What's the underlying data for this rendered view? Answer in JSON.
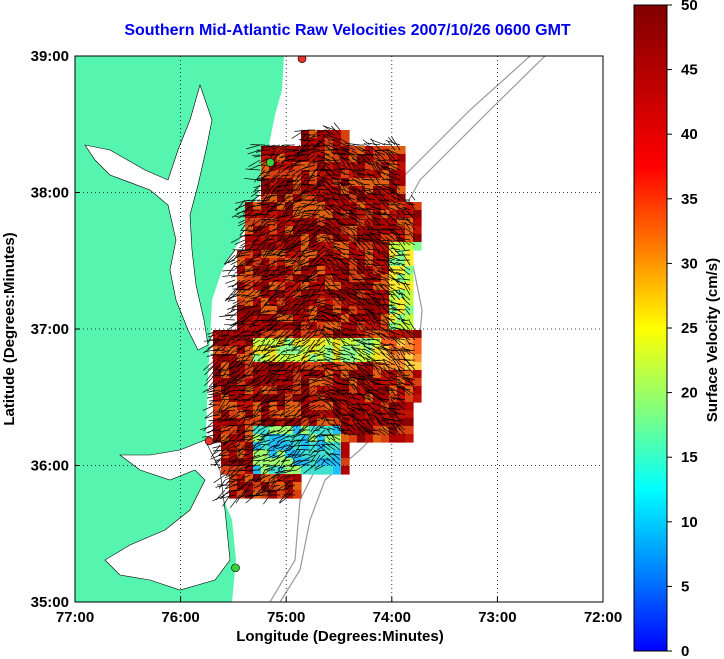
{
  "title": "Southern Mid-Atlantic Raw Velocities 2007/10/26 0600 GMT",
  "map": {
    "xlabel": "Longitude (Degrees:Minutes)",
    "ylabel": "Latitude (Degrees:Minutes)",
    "x_ticks": [
      "77:00",
      "76:00",
      "75:00",
      "74:00",
      "73:00",
      "72:00"
    ],
    "y_ticks": [
      "39:00",
      "38:00",
      "37:00",
      "36:00",
      "35:00"
    ],
    "lon_range": [
      -77,
      -72
    ],
    "lat_range": [
      35,
      39
    ],
    "grid": true
  },
  "colorbar": {
    "label": "Surface Velocity (cm/s)",
    "ticks": [
      "50",
      "45",
      "40",
      "35",
      "30",
      "25",
      "20",
      "15",
      "10",
      "5",
      "0"
    ],
    "range": [
      0,
      50
    ]
  },
  "stations": [
    {
      "name": "north-station",
      "lon": -74.85,
      "lat": 38.98,
      "color": "#e8322a"
    },
    {
      "name": "mid-station",
      "lon": -75.15,
      "lat": 38.22,
      "color": "#3ccf3c"
    },
    {
      "name": "south-station",
      "lon": -75.73,
      "lat": 36.18,
      "color": "#e8322a"
    },
    {
      "name": "lower-station",
      "lon": -75.48,
      "lat": 35.25,
      "color": "#3ccf3c"
    }
  ],
  "colors": {
    "land": "#55f5b0",
    "title": "#0000ee"
  }
}
